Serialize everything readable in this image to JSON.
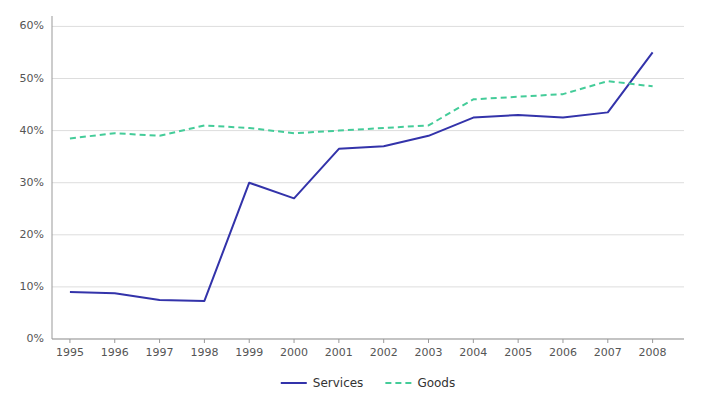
{
  "chart_data": {
    "type": "line",
    "x": [
      1995,
      1996,
      1997,
      1998,
      1999,
      2000,
      2001,
      2002,
      2003,
      2004,
      2005,
      2006,
      2007,
      2008
    ],
    "series": [
      {
        "name": "Services",
        "color": "#3333aa",
        "line_style": "solid",
        "values": [
          0.09,
          0.088,
          0.075,
          0.073,
          0.3,
          0.27,
          0.365,
          0.37,
          0.39,
          0.425,
          0.43,
          0.425,
          0.435,
          0.55
        ]
      },
      {
        "name": "Goods",
        "color": "#44cc99",
        "line_style": "dashed",
        "values": [
          0.385,
          0.395,
          0.39,
          0.41,
          0.405,
          0.395,
          0.4,
          0.405,
          0.41,
          0.46,
          0.465,
          0.47,
          0.495,
          0.485
        ]
      }
    ],
    "xlim": [
      1994.6,
      2008.7
    ],
    "xticks": [
      1995,
      1996,
      1997,
      1998,
      1999,
      2000,
      2001,
      2002,
      2003,
      2004,
      2005,
      2006,
      2007,
      2008
    ],
    "ylim": [
      0.0,
      0.62
    ],
    "yticks": [
      {
        "value": 0.0,
        "label": "0%"
      },
      {
        "value": 0.1,
        "label": "10%"
      },
      {
        "value": 0.2,
        "label": "20%"
      },
      {
        "value": 0.3,
        "label": "30%"
      },
      {
        "value": 0.4,
        "label": "40%"
      },
      {
        "value": 0.5,
        "label": "50%"
      },
      {
        "value": 0.6,
        "label": "60%"
      }
    ],
    "grid": true,
    "legend": "bottom"
  }
}
